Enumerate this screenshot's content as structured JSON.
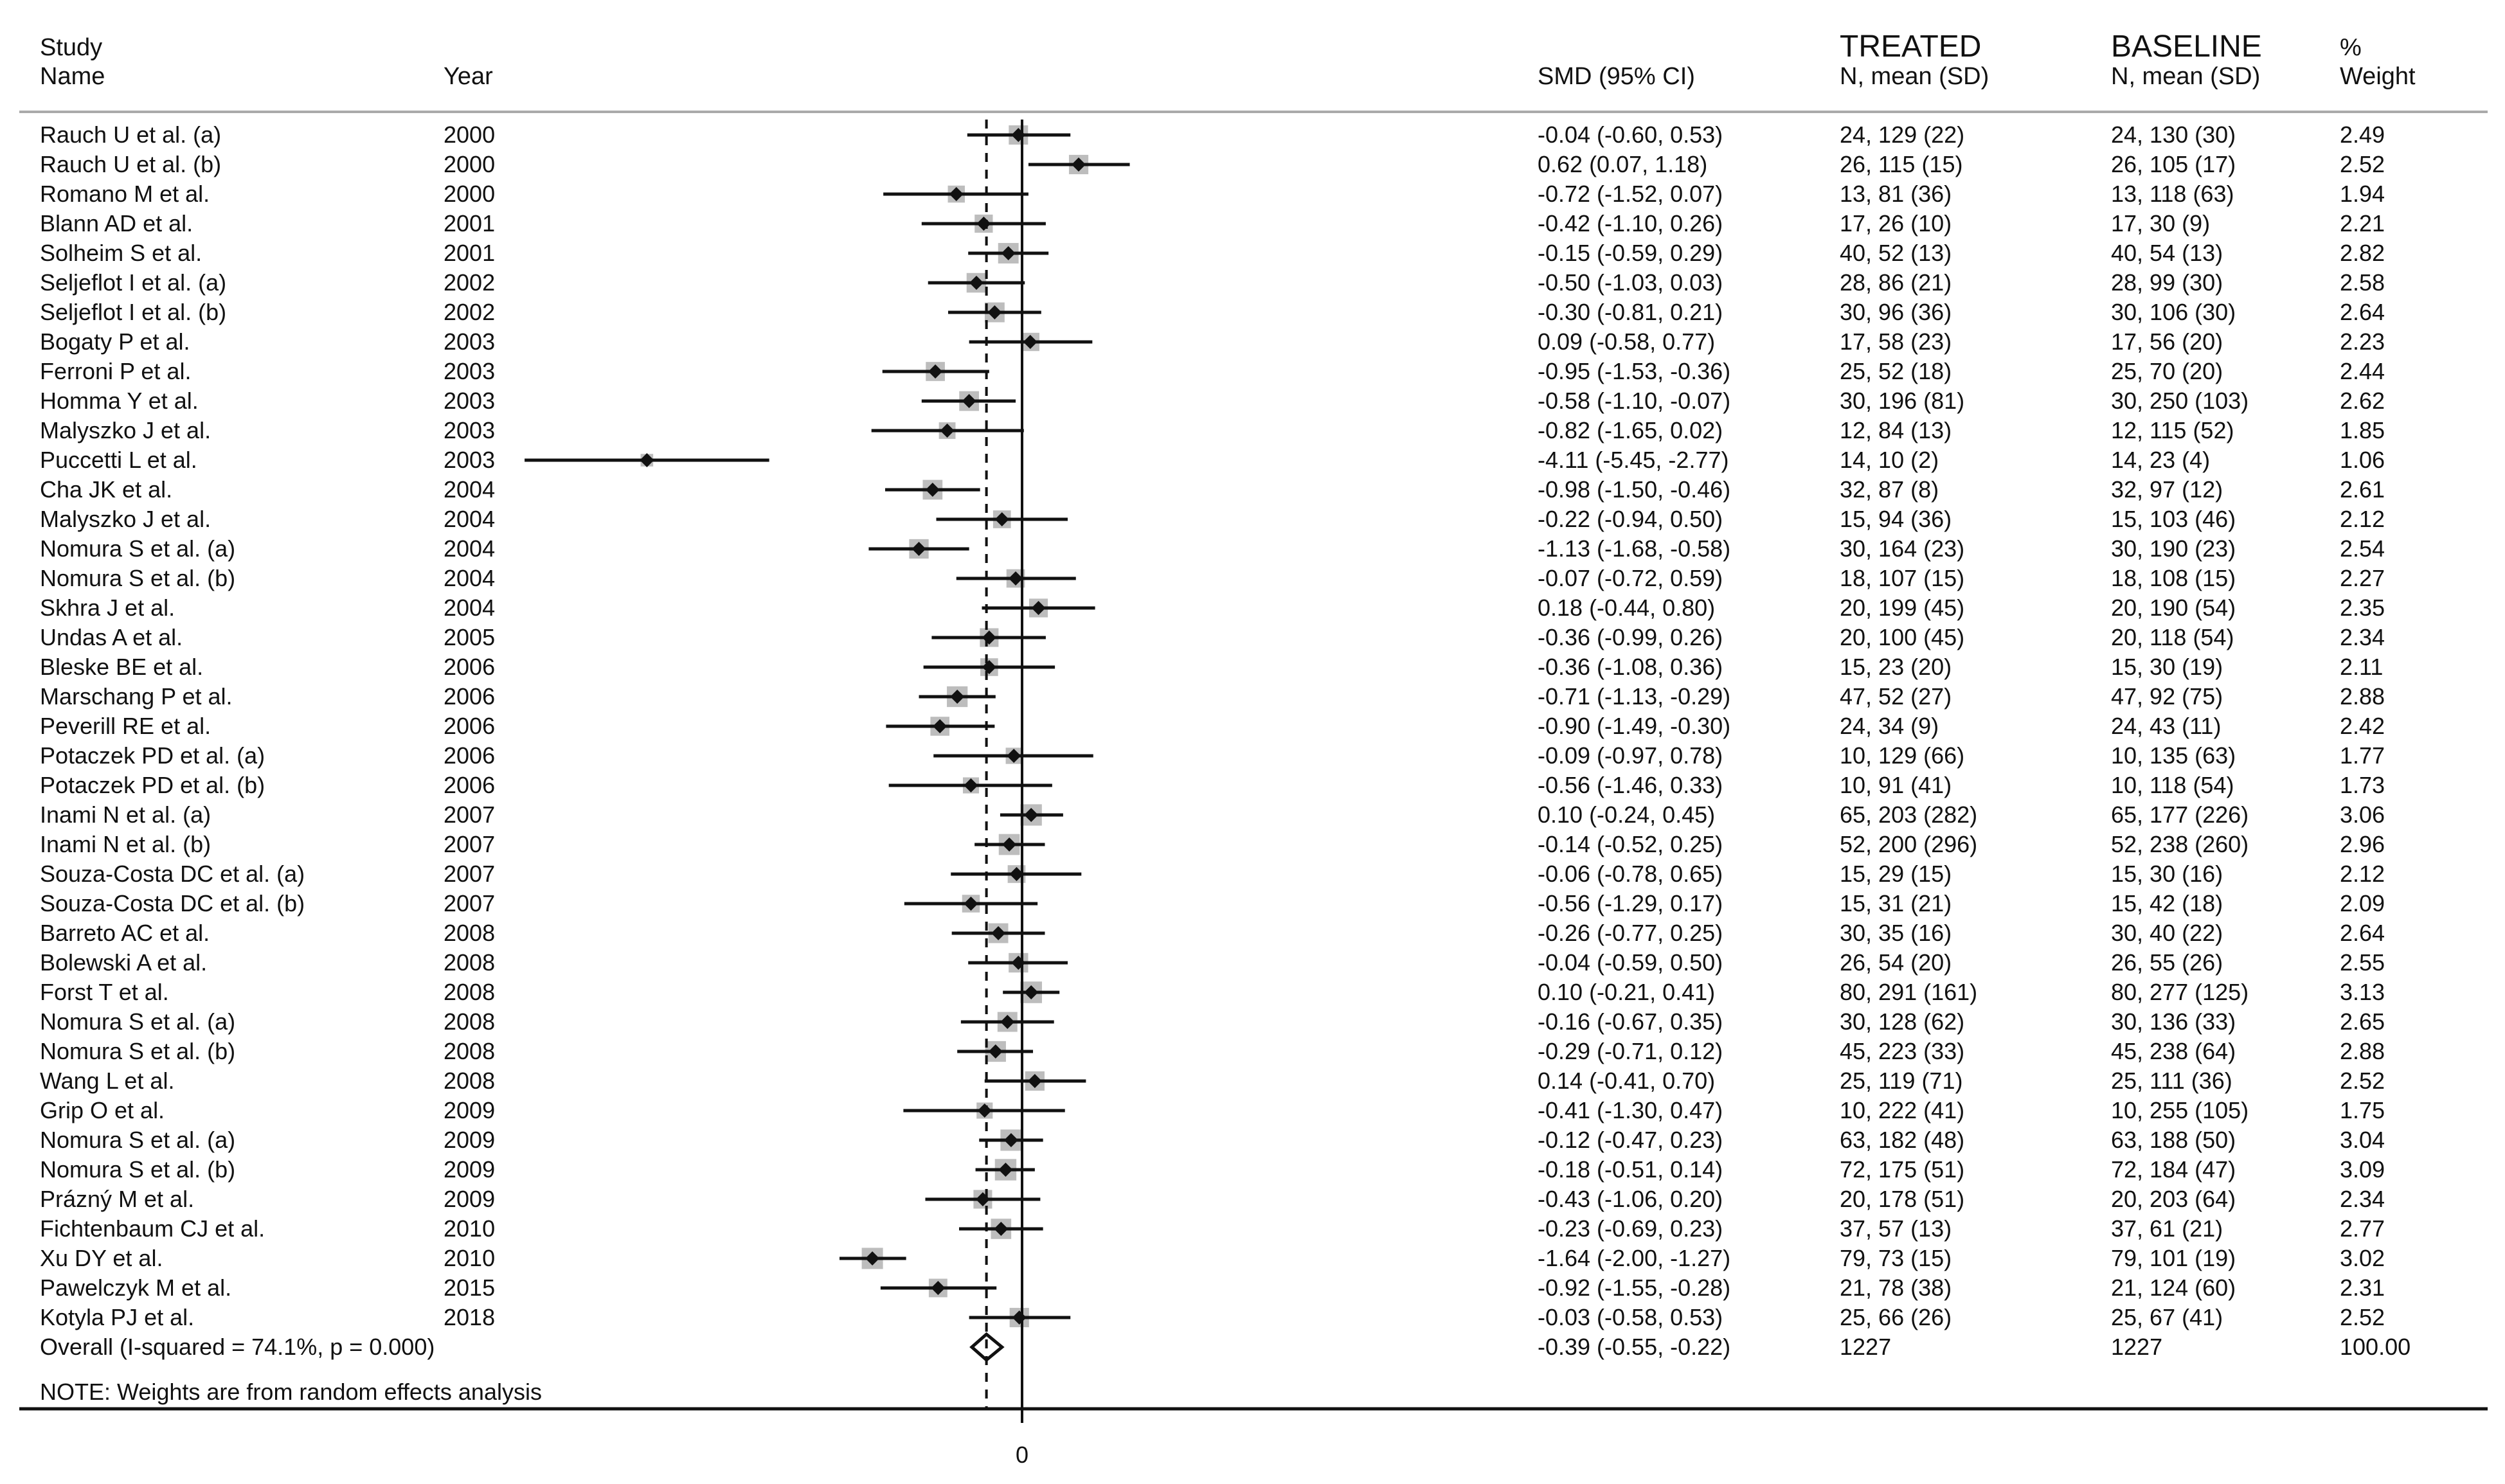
{
  "chart_data": {
    "type": "forest",
    "headers": {
      "study_line1": "Study",
      "study_line2": "Name",
      "year": "Year",
      "smd": "SMD (95% CI)",
      "treated_line1": "TREATED",
      "treated_line2": "N, mean (SD)",
      "baseline_line1": "BASELINE",
      "baseline_line2": "N, mean (SD)",
      "weight_line1": "%",
      "weight_line2": "Weight"
    },
    "x_tick": 0,
    "x_tick_label": "0",
    "overall_smd": -0.39,
    "studies": [
      {
        "name": "Rauch U et al. (a)",
        "year": "2000",
        "smd": -0.04,
        "lo": -0.6,
        "hi": 0.53,
        "ci_text": "-0.04 (-0.60, 0.53)",
        "treated": "24, 129 (22)",
        "baseline": "24, 130 (30)",
        "weight": "2.49"
      },
      {
        "name": "Rauch U et al. (b)",
        "year": "2000",
        "smd": 0.62,
        "lo": 0.07,
        "hi": 1.18,
        "ci_text": "0.62 (0.07, 1.18)",
        "treated": "26, 115 (15)",
        "baseline": "26, 105 (17)",
        "weight": "2.52"
      },
      {
        "name": "Romano M et al.",
        "year": "2000",
        "smd": -0.72,
        "lo": -1.52,
        "hi": 0.07,
        "ci_text": "-0.72 (-1.52, 0.07)",
        "treated": "13, 81 (36)",
        "baseline": "13, 118 (63)",
        "weight": "1.94"
      },
      {
        "name": "Blann AD et al.",
        "year": "2001",
        "smd": -0.42,
        "lo": -1.1,
        "hi": 0.26,
        "ci_text": "-0.42 (-1.10, 0.26)",
        "treated": "17, 26 (10)",
        "baseline": "17, 30 (9)",
        "weight": "2.21"
      },
      {
        "name": "Solheim S et al.",
        "year": "2001",
        "smd": -0.15,
        "lo": -0.59,
        "hi": 0.29,
        "ci_text": "-0.15 (-0.59, 0.29)",
        "treated": "40, 52 (13)",
        "baseline": "40, 54 (13)",
        "weight": "2.82"
      },
      {
        "name": "Seljeflot I et al. (a)",
        "year": "2002",
        "smd": -0.5,
        "lo": -1.03,
        "hi": 0.03,
        "ci_text": "-0.50 (-1.03, 0.03)",
        "treated": "28, 86 (21)",
        "baseline": "28, 99 (30)",
        "weight": "2.58"
      },
      {
        "name": "Seljeflot I et al. (b)",
        "year": "2002",
        "smd": -0.3,
        "lo": -0.81,
        "hi": 0.21,
        "ci_text": "-0.30 (-0.81, 0.21)",
        "treated": "30, 96 (36)",
        "baseline": "30, 106 (30)",
        "weight": "2.64"
      },
      {
        "name": "Bogaty P et al.",
        "year": "2003",
        "smd": 0.09,
        "lo": -0.58,
        "hi": 0.77,
        "ci_text": "0.09 (-0.58, 0.77)",
        "treated": "17, 58 (23)",
        "baseline": "17, 56 (20)",
        "weight": "2.23"
      },
      {
        "name": "Ferroni P et al.",
        "year": "2003",
        "smd": -0.95,
        "lo": -1.53,
        "hi": -0.36,
        "ci_text": "-0.95 (-1.53, -0.36)",
        "treated": "25, 52 (18)",
        "baseline": "25, 70 (20)",
        "weight": "2.44"
      },
      {
        "name": "Homma Y et al.",
        "year": "2003",
        "smd": -0.58,
        "lo": -1.1,
        "hi": -0.07,
        "ci_text": "-0.58 (-1.10, -0.07)",
        "treated": "30, 196 (81)",
        "baseline": "30, 250 (103)",
        "weight": "2.62"
      },
      {
        "name": "Malyszko J et al.",
        "year": "2003",
        "smd": -0.82,
        "lo": -1.65,
        "hi": 0.02,
        "ci_text": "-0.82 (-1.65, 0.02)",
        "treated": "12, 84 (13)",
        "baseline": "12, 115 (52)",
        "weight": "1.85"
      },
      {
        "name": "Puccetti L et al.",
        "year": "2003",
        "smd": -4.11,
        "lo": -5.45,
        "hi": -2.77,
        "ci_text": "-4.11 (-5.45, -2.77)",
        "treated": "14, 10 (2)",
        "baseline": "14, 23 (4)",
        "weight": "1.06"
      },
      {
        "name": "Cha JK et al.",
        "year": "2004",
        "smd": -0.98,
        "lo": -1.5,
        "hi": -0.46,
        "ci_text": "-0.98 (-1.50, -0.46)",
        "treated": "32, 87 (8)",
        "baseline": "32, 97 (12)",
        "weight": "2.61"
      },
      {
        "name": "Malyszko J et al.",
        "year": "2004",
        "smd": -0.22,
        "lo": -0.94,
        "hi": 0.5,
        "ci_text": "-0.22 (-0.94, 0.50)",
        "treated": "15, 94 (36)",
        "baseline": "15, 103 (46)",
        "weight": "2.12"
      },
      {
        "name": "Nomura S et al. (a)",
        "year": "2004",
        "smd": -1.13,
        "lo": -1.68,
        "hi": -0.58,
        "ci_text": "-1.13 (-1.68, -0.58)",
        "treated": "30, 164 (23)",
        "baseline": "30, 190 (23)",
        "weight": "2.54"
      },
      {
        "name": "Nomura S et al. (b)",
        "year": "2004",
        "smd": -0.07,
        "lo": -0.72,
        "hi": 0.59,
        "ci_text": "-0.07 (-0.72, 0.59)",
        "treated": "18, 107 (15)",
        "baseline": "18, 108 (15)",
        "weight": "2.27"
      },
      {
        "name": "Skhra J et al.",
        "year": "2004",
        "smd": 0.18,
        "lo": -0.44,
        "hi": 0.8,
        "ci_text": "0.18 (-0.44, 0.80)",
        "treated": "20, 199 (45)",
        "baseline": "20, 190 (54)",
        "weight": "2.35"
      },
      {
        "name": "Undas A et al.",
        "year": "2005",
        "smd": -0.36,
        "lo": -0.99,
        "hi": 0.26,
        "ci_text": "-0.36 (-0.99, 0.26)",
        "treated": "20, 100 (45)",
        "baseline": "20, 118 (54)",
        "weight": "2.34"
      },
      {
        "name": "Bleske BE et al.",
        "year": "2006",
        "smd": -0.36,
        "lo": -1.08,
        "hi": 0.36,
        "ci_text": "-0.36 (-1.08, 0.36)",
        "treated": "15, 23 (20)",
        "baseline": "15, 30 (19)",
        "weight": "2.11"
      },
      {
        "name": "Marschang P et al.",
        "year": "2006",
        "smd": -0.71,
        "lo": -1.13,
        "hi": -0.29,
        "ci_text": "-0.71 (-1.13, -0.29)",
        "treated": "47, 52 (27)",
        "baseline": "47, 92 (75)",
        "weight": "2.88"
      },
      {
        "name": "Peverill RE et al.",
        "year": "2006",
        "smd": -0.9,
        "lo": -1.49,
        "hi": -0.3,
        "ci_text": "-0.90 (-1.49, -0.30)",
        "treated": "24, 34 (9)",
        "baseline": "24, 43 (11)",
        "weight": "2.42"
      },
      {
        "name": "Potaczek PD et al. (a)",
        "year": "2006",
        "smd": -0.09,
        "lo": -0.97,
        "hi": 0.78,
        "ci_text": "-0.09 (-0.97, 0.78)",
        "treated": "10, 129 (66)",
        "baseline": "10, 135 (63)",
        "weight": "1.77"
      },
      {
        "name": "Potaczek PD et al. (b)",
        "year": "2006",
        "smd": -0.56,
        "lo": -1.46,
        "hi": 0.33,
        "ci_text": "-0.56 (-1.46, 0.33)",
        "treated": "10, 91 (41)",
        "baseline": "10, 118 (54)",
        "weight": "1.73"
      },
      {
        "name": "Inami N et al. (a)",
        "year": "2007",
        "smd": 0.1,
        "lo": -0.24,
        "hi": 0.45,
        "ci_text": "0.10 (-0.24, 0.45)",
        "treated": "65, 203 (282)",
        "baseline": "65, 177 (226)",
        "weight": "3.06"
      },
      {
        "name": "Inami N et al. (b)",
        "year": "2007",
        "smd": -0.14,
        "lo": -0.52,
        "hi": 0.25,
        "ci_text": "-0.14 (-0.52, 0.25)",
        "treated": "52, 200 (296)",
        "baseline": "52, 238 (260)",
        "weight": "2.96"
      },
      {
        "name": "Souza-Costa DC et al. (a)",
        "year": "2007",
        "smd": -0.06,
        "lo": -0.78,
        "hi": 0.65,
        "ci_text": "-0.06 (-0.78, 0.65)",
        "treated": "15, 29 (15)",
        "baseline": "15, 30 (16)",
        "weight": "2.12"
      },
      {
        "name": "Souza-Costa DC et al. (b)",
        "year": "2007",
        "smd": -0.56,
        "lo": -1.29,
        "hi": 0.17,
        "ci_text": "-0.56 (-1.29, 0.17)",
        "treated": "15, 31 (21)",
        "baseline": "15, 42 (18)",
        "weight": "2.09"
      },
      {
        "name": "Barreto AC et al.",
        "year": "2008",
        "smd": -0.26,
        "lo": -0.77,
        "hi": 0.25,
        "ci_text": "-0.26 (-0.77, 0.25)",
        "treated": "30, 35 (16)",
        "baseline": "30, 40 (22)",
        "weight": "2.64"
      },
      {
        "name": "Bolewski A et al.",
        "year": "2008",
        "smd": -0.04,
        "lo": -0.59,
        "hi": 0.5,
        "ci_text": "-0.04 (-0.59, 0.50)",
        "treated": "26, 54 (20)",
        "baseline": "26, 55 (26)",
        "weight": "2.55"
      },
      {
        "name": "Forst T et al.",
        "year": "2008",
        "smd": 0.1,
        "lo": -0.21,
        "hi": 0.41,
        "ci_text": "0.10 (-0.21, 0.41)",
        "treated": "80, 291 (161)",
        "baseline": "80, 277 (125)",
        "weight": "3.13"
      },
      {
        "name": "Nomura S et al. (a)",
        "year": "2008",
        "smd": -0.16,
        "lo": -0.67,
        "hi": 0.35,
        "ci_text": "-0.16 (-0.67, 0.35)",
        "treated": "30, 128 (62)",
        "baseline": "30, 136 (33)",
        "weight": "2.65"
      },
      {
        "name": "Nomura S et al. (b)",
        "year": "2008",
        "smd": -0.29,
        "lo": -0.71,
        "hi": 0.12,
        "ci_text": "-0.29 (-0.71, 0.12)",
        "treated": "45, 223 (33)",
        "baseline": "45, 238 (64)",
        "weight": "2.88"
      },
      {
        "name": "Wang L et al.",
        "year": "2008",
        "smd": 0.14,
        "lo": -0.41,
        "hi": 0.7,
        "ci_text": "0.14 (-0.41, 0.70)",
        "treated": "25, 119 (71)",
        "baseline": "25, 111 (36)",
        "weight": "2.52"
      },
      {
        "name": "Grip O et al.",
        "year": "2009",
        "smd": -0.41,
        "lo": -1.3,
        "hi": 0.47,
        "ci_text": "-0.41 (-1.30, 0.47)",
        "treated": "10, 222 (41)",
        "baseline": "10, 255 (105)",
        "weight": "1.75"
      },
      {
        "name": "Nomura S et al. (a)",
        "year": "2009",
        "smd": -0.12,
        "lo": -0.47,
        "hi": 0.23,
        "ci_text": "-0.12 (-0.47, 0.23)",
        "treated": "63, 182 (48)",
        "baseline": "63, 188 (50)",
        "weight": "3.04"
      },
      {
        "name": "Nomura S et al. (b)",
        "year": "2009",
        "smd": -0.18,
        "lo": -0.51,
        "hi": 0.14,
        "ci_text": "-0.18 (-0.51, 0.14)",
        "treated": "72, 175 (51)",
        "baseline": "72, 184 (47)",
        "weight": "3.09"
      },
      {
        "name": "Prázný M et al.",
        "year": "2009",
        "smd": -0.43,
        "lo": -1.06,
        "hi": 0.2,
        "ci_text": "-0.43 (-1.06, 0.20)",
        "treated": "20, 178 (51)",
        "baseline": "20, 203 (64)",
        "weight": "2.34"
      },
      {
        "name": "Fichtenbaum CJ et al.",
        "year": "2010",
        "smd": -0.23,
        "lo": -0.69,
        "hi": 0.23,
        "ci_text": "-0.23 (-0.69, 0.23)",
        "treated": "37, 57 (13)",
        "baseline": "37, 61 (21)",
        "weight": "2.77"
      },
      {
        "name": "Xu DY et al.",
        "year": "2010",
        "smd": -1.64,
        "lo": -2.0,
        "hi": -1.27,
        "ci_text": "-1.64 (-2.00, -1.27)",
        "treated": "79, 73 (15)",
        "baseline": "79, 101 (19)",
        "weight": "3.02"
      },
      {
        "name": "Pawelczyk M et al.",
        "year": "2015",
        "smd": -0.92,
        "lo": -1.55,
        "hi": -0.28,
        "ci_text": "-0.92 (-1.55, -0.28)",
        "treated": "21, 78 (38)",
        "baseline": "21, 124 (60)",
        "weight": "2.31"
      },
      {
        "name": "Kotyla PJ et al.",
        "year": "2018",
        "smd": -0.03,
        "lo": -0.58,
        "hi": 0.53,
        "ci_text": "-0.03 (-0.58, 0.53)",
        "treated": "25, 66 (26)",
        "baseline": "25, 67 (41)",
        "weight": "2.52"
      }
    ],
    "overall": {
      "label": "Overall  (I-squared = 74.1%, p = 0.000)",
      "smd": -0.39,
      "lo": -0.55,
      "hi": -0.22,
      "ci_text": "-0.39 (-0.55, -0.22)",
      "treated": "1227",
      "baseline": "1227",
      "weight": "100.00"
    },
    "note": "NOTE: Weights are from random effects analysis"
  }
}
